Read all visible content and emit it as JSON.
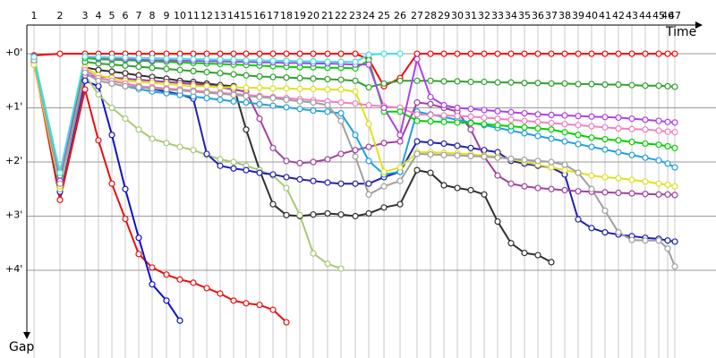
{
  "chart_data": {
    "type": "line",
    "x_label": "Time",
    "y_label": "Gap",
    "x": [
      8,
      37,
      65,
      80,
      95,
      110,
      125,
      140,
      156,
      171,
      186,
      201,
      216,
      231,
      245,
      260,
      275,
      290,
      305,
      320,
      336,
      351,
      367,
      382,
      399,
      417,
      436,
      451,
      466,
      481,
      496,
      511,
      526,
      541,
      556,
      571,
      586,
      601,
      616,
      631,
      646,
      661,
      676,
      691,
      706,
      716,
      724
    ],
    "xlim": [
      0,
      770
    ],
    "xticks": [
      {
        "value": 8,
        "label": "1"
      },
      {
        "value": 37,
        "label": "2"
      },
      {
        "value": 65,
        "label": "3"
      },
      {
        "value": 80,
        "label": "4"
      },
      {
        "value": 95,
        "label": "5"
      },
      {
        "value": 110,
        "label": "6"
      },
      {
        "value": 125,
        "label": "7"
      },
      {
        "value": 140,
        "label": "8"
      },
      {
        "value": 156,
        "label": "9"
      },
      {
        "value": 171,
        "label": "10"
      },
      {
        "value": 186,
        "label": "11"
      },
      {
        "value": 201,
        "label": "12"
      },
      {
        "value": 216,
        "label": "13"
      },
      {
        "value": 231,
        "label": "14"
      },
      {
        "value": 245,
        "label": "15"
      },
      {
        "value": 260,
        "label": "16"
      },
      {
        "value": 275,
        "label": "17"
      },
      {
        "value": 290,
        "label": "18"
      },
      {
        "value": 305,
        "label": "19"
      },
      {
        "value": 320,
        "label": "20"
      },
      {
        "value": 336,
        "label": "21"
      },
      {
        "value": 351,
        "label": "22"
      },
      {
        "value": 367,
        "label": "23"
      },
      {
        "value": 382,
        "label": "24"
      },
      {
        "value": 399,
        "label": "25"
      },
      {
        "value": 417,
        "label": "26"
      },
      {
        "value": 436,
        "label": "27"
      },
      {
        "value": 451,
        "label": "28"
      },
      {
        "value": 466,
        "label": "29"
      },
      {
        "value": 481,
        "label": "30"
      },
      {
        "value": 496,
        "label": "31"
      },
      {
        "value": 511,
        "label": "32"
      },
      {
        "value": 526,
        "label": "33"
      },
      {
        "value": 541,
        "label": "34"
      },
      {
        "value": 556,
        "label": "35"
      },
      {
        "value": 571,
        "label": "36"
      },
      {
        "value": 586,
        "label": "37"
      },
      {
        "value": 601,
        "label": "38"
      },
      {
        "value": 616,
        "label": "39"
      },
      {
        "value": 631,
        "label": "40"
      },
      {
        "value": 646,
        "label": "41"
      },
      {
        "value": 661,
        "label": "42"
      },
      {
        "value": 676,
        "label": "43"
      },
      {
        "value": 691,
        "label": "44"
      },
      {
        "value": 706,
        "label": "45"
      },
      {
        "value": 716,
        "label": "46"
      },
      {
        "value": 724,
        "label": "47"
      }
    ],
    "ylim": [
      -0.53,
      5.29
    ],
    "y_reversed": true,
    "yticks": [
      {
        "value": 0,
        "label": "+0'"
      },
      {
        "value": 1,
        "label": "+1'"
      },
      {
        "value": 2,
        "label": "+2'"
      },
      {
        "value": 3,
        "label": "+3'"
      },
      {
        "value": 4,
        "label": "+4'"
      }
    ],
    "grid": true,
    "series": [
      {
        "color": "#ff0000",
        "values": [
          0.03,
          0,
          0,
          0,
          0,
          0,
          0,
          0,
          0,
          0,
          0,
          0,
          0,
          0,
          0,
          0,
          0,
          0,
          0,
          0,
          0,
          0,
          0,
          0.1,
          0.6,
          0.45,
          0,
          0,
          0,
          0,
          0,
          0,
          0,
          0,
          0,
          0,
          0,
          0,
          0,
          0,
          0,
          0,
          0,
          0,
          0,
          0,
          0
        ]
      },
      {
        "color": "#e81010",
        "values": [
          0.15,
          2.7,
          0.66,
          1.6,
          2.4,
          3.05,
          3.7,
          3.95,
          4.08,
          4.17,
          4.23,
          4.33,
          4.43,
          4.56,
          4.61,
          4.64,
          4.73,
          4.96,
          null,
          null,
          null,
          null,
          null,
          null,
          null,
          null,
          null,
          null,
          null,
          null,
          null,
          null,
          null,
          null,
          null,
          null,
          null,
          null,
          null,
          null,
          null,
          null,
          null,
          null,
          null,
          null,
          null
        ]
      },
      {
        "color": "#1010d0",
        "values": [
          0.1,
          2.55,
          0.5,
          0.6,
          1.5,
          2.5,
          3.4,
          4.26,
          4.56,
          4.93,
          null,
          null,
          null,
          null,
          null,
          null,
          null,
          null,
          null,
          null,
          null,
          null,
          null,
          null,
          null,
          null,
          null,
          null,
          null,
          null,
          null,
          null,
          null,
          null,
          null,
          null,
          null,
          null,
          null,
          null,
          null,
          null,
          null,
          null,
          null,
          null,
          null
        ]
      },
      {
        "color": "#303030",
        "values": [
          0.2,
          2.45,
          0.25,
          0.3,
          0.33,
          0.36,
          0.4,
          0.43,
          0.46,
          0.5,
          0.52,
          0.55,
          0.58,
          0.6,
          1.4,
          2.15,
          2.78,
          2.98,
          3.0,
          2.97,
          2.95,
          2.97,
          3.0,
          2.95,
          2.84,
          2.78,
          2.15,
          2.2,
          2.43,
          2.48,
          2.52,
          2.6,
          3.1,
          3.5,
          3.68,
          3.72,
          3.85,
          null,
          null,
          null,
          null,
          null,
          null,
          null,
          null,
          null,
          null
        ]
      },
      {
        "color": "#a8c878",
        "values": [
          0.18,
          2.5,
          0.4,
          0.75,
          1.0,
          1.2,
          1.4,
          1.57,
          1.65,
          1.72,
          1.78,
          1.87,
          1.95,
          2.0,
          2.07,
          2.15,
          2.25,
          2.48,
          2.98,
          3.69,
          3.88,
          3.97,
          null,
          null,
          null,
          null,
          null,
          null,
          null,
          null,
          null,
          null,
          null,
          null,
          null,
          null,
          null,
          null,
          null,
          null,
          null,
          null,
          null,
          null,
          null,
          null,
          null
        ]
      },
      {
        "color": "#2020b0",
        "values": [
          0.12,
          2.3,
          0.3,
          0.45,
          0.5,
          0.55,
          0.6,
          0.65,
          0.7,
          0.75,
          0.83,
          1.85,
          2.07,
          2.12,
          2.15,
          2.2,
          2.23,
          2.28,
          2.32,
          2.35,
          2.38,
          2.4,
          2.4,
          2.4,
          2.28,
          2.18,
          1.62,
          1.64,
          1.66,
          1.7,
          1.74,
          1.78,
          1.82,
          1.98,
          2.03,
          2.07,
          2.1,
          2.23,
          3.06,
          3.22,
          3.3,
          3.34,
          3.37,
          3.4,
          3.42,
          3.45,
          3.47
        ]
      },
      {
        "color": "#a040a0",
        "values": [
          0.14,
          2.4,
          0.4,
          0.42,
          0.44,
          0.46,
          0.48,
          0.5,
          0.52,
          0.54,
          0.56,
          0.58,
          0.62,
          0.66,
          0.7,
          1.2,
          1.74,
          1.98,
          2.02,
          2.0,
          1.95,
          1.85,
          1.78,
          1.72,
          1.65,
          1.62,
          0.9,
          0.93,
          1.0,
          1.07,
          1.4,
          1.9,
          2.25,
          2.4,
          2.45,
          2.48,
          2.5,
          2.52,
          2.54,
          2.55,
          2.56,
          2.57,
          2.58,
          2.59,
          2.6,
          2.6,
          2.61
        ]
      },
      {
        "color": "#20a0e0",
        "values": [
          0.1,
          2.35,
          0.35,
          0.5,
          0.55,
          0.6,
          0.65,
          0.7,
          0.73,
          0.76,
          0.79,
          0.82,
          0.85,
          0.88,
          0.9,
          0.93,
          0.96,
          0.99,
          1.02,
          1.05,
          1.07,
          1.1,
          1.5,
          1.98,
          2.23,
          2.18,
          1.07,
          1.12,
          1.17,
          1.22,
          1.27,
          1.32,
          1.37,
          1.42,
          1.47,
          1.52,
          1.57,
          1.62,
          1.67,
          1.72,
          1.77,
          1.82,
          1.87,
          1.92,
          1.97,
          2.03,
          2.1
        ]
      },
      {
        "color": "#e0e020",
        "values": [
          0.2,
          2.45,
          0.25,
          0.4,
          0.45,
          0.5,
          0.52,
          0.54,
          0.56,
          0.58,
          0.6,
          0.6,
          0.62,
          0.62,
          0.63,
          0.63,
          0.64,
          0.64,
          0.65,
          0.65,
          0.66,
          0.66,
          0.7,
          1.3,
          2.18,
          2.1,
          1.82,
          1.82,
          1.83,
          1.84,
          1.86,
          1.88,
          1.9,
          1.95,
          2.0,
          2.05,
          2.1,
          2.15,
          2.2,
          2.25,
          2.28,
          2.3,
          2.33,
          2.36,
          2.4,
          2.42,
          2.45
        ]
      },
      {
        "color": "#f080c0",
        "values": [
          0.1,
          2.3,
          0.3,
          0.45,
          0.5,
          0.55,
          0.6,
          0.62,
          0.64,
          0.66,
          0.68,
          0.7,
          0.72,
          0.74,
          0.76,
          0.78,
          0.8,
          0.82,
          0.84,
          0.86,
          0.88,
          0.9,
          0.92,
          0.95,
          0.97,
          1.0,
          1.12,
          1.13,
          1.14,
          1.15,
          1.16,
          1.18,
          1.2,
          1.22,
          1.24,
          1.26,
          1.28,
          1.3,
          1.32,
          1.34,
          1.36,
          1.38,
          1.39,
          1.4,
          1.42,
          1.44,
          1.45
        ]
      },
      {
        "color": "#30a030",
        "values": [
          0.08,
          2.25,
          0.15,
          0.18,
          0.2,
          0.22,
          0.24,
          0.26,
          0.28,
          0.3,
          0.32,
          0.34,
          0.36,
          0.38,
          0.4,
          0.42,
          0.43,
          0.44,
          0.45,
          0.46,
          0.47,
          0.48,
          0.5,
          0.62,
          0.55,
          0.5,
          0.5,
          0.5,
          0.51,
          0.51,
          0.52,
          0.52,
          0.53,
          0.53,
          0.54,
          0.54,
          0.55,
          0.55,
          0.56,
          0.56,
          0.57,
          0.57,
          0.58,
          0.59,
          0.59,
          0.6,
          0.61
        ]
      },
      {
        "color": "#00d000",
        "values": [
          0.05,
          2.4,
          0.08,
          0.1,
          0.11,
          0.12,
          0.13,
          0.14,
          0.15,
          0.16,
          0.17,
          0.18,
          0.19,
          0.2,
          0.21,
          0.22,
          0.23,
          0.24,
          0.25,
          0.25,
          0.26,
          0.26,
          0.27,
          0.12,
          1.07,
          1.07,
          1.24,
          1.25,
          1.26,
          1.27,
          1.28,
          1.3,
          1.32,
          1.34,
          1.36,
          1.38,
          1.4,
          1.45,
          1.5,
          1.55,
          1.58,
          1.6,
          1.63,
          1.66,
          1.68,
          1.71,
          1.74
        ]
      },
      {
        "color": "#b040e8",
        "values": [
          0.05,
          2.35,
          0.05,
          0.08,
          0.09,
          0.1,
          0.11,
          0.12,
          0.12,
          0.13,
          0.13,
          0.14,
          0.14,
          0.15,
          0.15,
          0.16,
          0.16,
          0.17,
          0.17,
          0.18,
          0.18,
          0.19,
          0.2,
          0.2,
          1.0,
          1.5,
          0.1,
          0.8,
          0.95,
          1.0,
          1.02,
          1.04,
          1.06,
          1.08,
          1.1,
          1.12,
          1.13,
          1.14,
          1.15,
          1.16,
          1.17,
          1.18,
          1.2,
          1.22,
          1.24,
          1.26,
          1.27
        ]
      },
      {
        "color": "#a0a0a0",
        "values": [
          0.12,
          2.4,
          0.35,
          0.5,
          0.55,
          0.6,
          0.62,
          0.64,
          0.66,
          0.68,
          0.7,
          0.72,
          0.74,
          0.76,
          0.78,
          0.8,
          0.82,
          0.85,
          0.88,
          0.9,
          0.95,
          1.24,
          1.9,
          2.6,
          2.45,
          2.35,
          1.85,
          1.86,
          1.87,
          1.88,
          1.89,
          1.9,
          1.92,
          1.94,
          1.96,
          1.98,
          2.0,
          2.05,
          2.2,
          2.5,
          2.9,
          3.3,
          3.44,
          3.45,
          3.45,
          3.6,
          3.93
        ]
      },
      {
        "color": "#40e0e0",
        "values": [
          0.06,
          2.2,
          0.05,
          0.06,
          0.07,
          0.07,
          0.08,
          0.08,
          0.09,
          0.09,
          0.1,
          0.1,
          0.11,
          0.11,
          0.12,
          0.12,
          0.13,
          0.13,
          0.14,
          0.14,
          0.15,
          0.15,
          0.15,
          0.02,
          0,
          0,
          null,
          null,
          null,
          null,
          null,
          null,
          null,
          null,
          null,
          null,
          null,
          null,
          null,
          null,
          null,
          null,
          null,
          null,
          null,
          null,
          null
        ]
      }
    ]
  }
}
